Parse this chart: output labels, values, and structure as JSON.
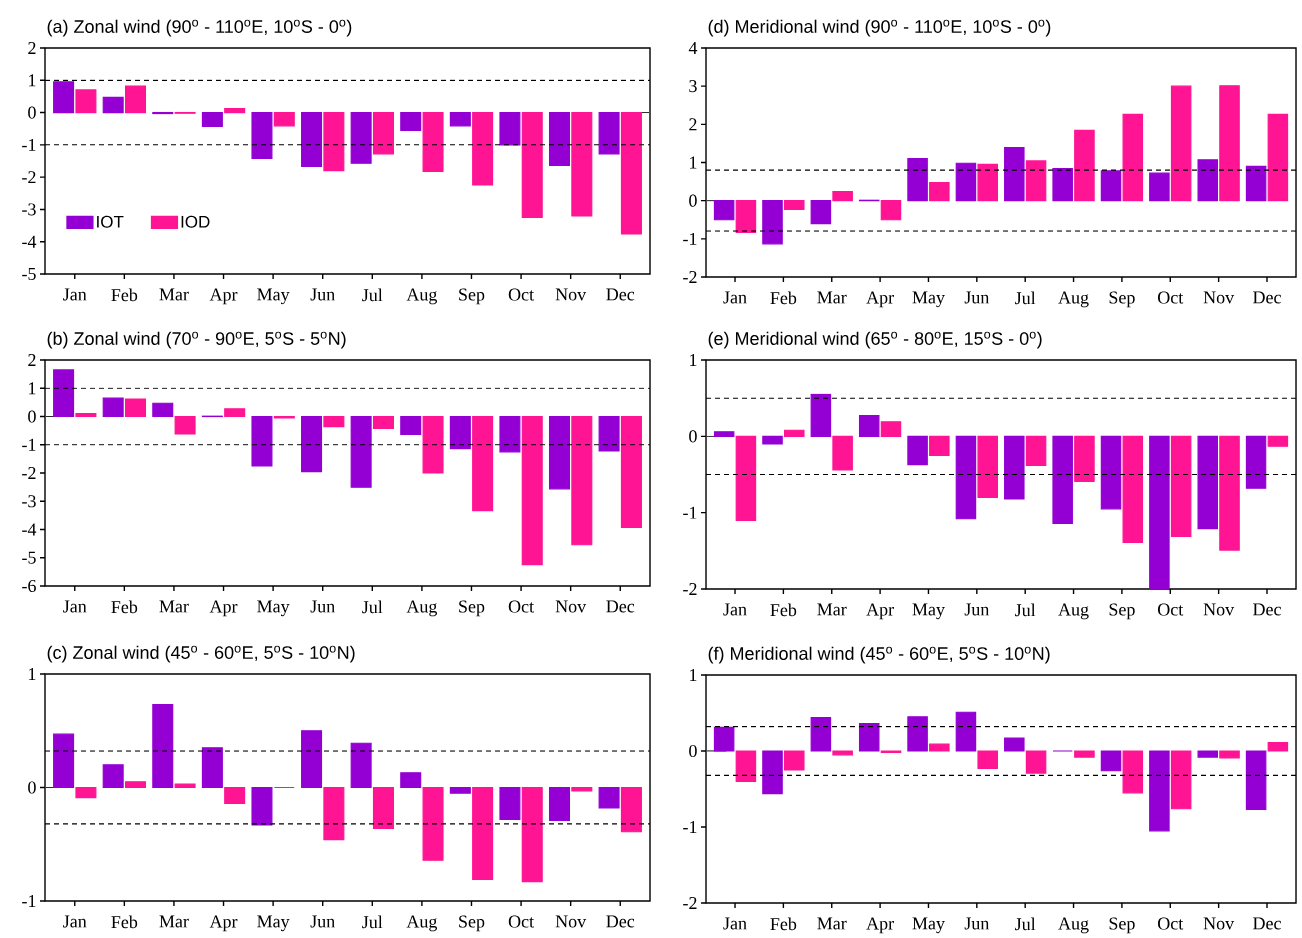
{
  "chart_data": [
    {
      "type": "bar",
      "title": "(a) Zonal wind (90$^{o}$ - 110$^{o}$E, 10$^{o}$S - 0$^{o}$)",
      "categories": [
        "Jan",
        "Feb",
        "Mar",
        "Apr",
        "May",
        "Jun",
        "Jul",
        "Aug",
        "Sep",
        "Oct",
        "Nov",
        "Dec"
      ],
      "series": [
        {
          "name": "IOT",
          "color": "#9400d3",
          "values": [
            0.95,
            0.47,
            -0.03,
            -0.43,
            -1.42,
            -1.67,
            -1.57,
            -0.55,
            -0.41,
            -1.0,
            -1.64,
            -1.28
          ]
        },
        {
          "name": "IOD",
          "color": "#ff1493",
          "values": [
            0.7,
            0.82,
            -0.02,
            0.12,
            -0.41,
            -1.8,
            -1.28,
            -1.82,
            -2.24,
            -3.25,
            -3.2,
            -3.76
          ]
        }
      ],
      "ylim": [
        -5,
        2
      ],
      "yticks": [
        -5,
        -4,
        -3,
        -2,
        -1,
        0,
        1,
        2
      ],
      "legend": "bottom left",
      "ref_lines": [
        {
          "axis": "y",
          "value": 1,
          "line_style": "dashed"
        },
        {
          "axis": "y",
          "value": -1,
          "line_style": "dashed"
        }
      ]
    },
    {
      "type": "bar",
      "title": "(b) Zonal wind (70$^{o}$ - 90$^{o}$E, 5$^{o}$S - 5$^{o}$N)",
      "categories": [
        "Jan",
        "Feb",
        "Mar",
        "Apr",
        "May",
        "Jun",
        "Jul",
        "Aug",
        "Sep",
        "Oct",
        "Nov",
        "Dec"
      ],
      "series": [
        {
          "color": "#9400d3",
          "values": [
            1.65,
            0.65,
            0.47,
            0.01,
            -1.75,
            -1.95,
            -2.5,
            -0.63,
            -1.14,
            -1.25,
            -2.56,
            -1.22
          ]
        },
        {
          "color": "#ff1493",
          "values": [
            0.1,
            0.62,
            -0.62,
            0.27,
            -0.05,
            -0.36,
            -0.42,
            -2.0,
            -3.33,
            -5.24,
            -4.54,
            -3.93
          ]
        }
      ],
      "ylim": [
        -6,
        2
      ],
      "yticks": [
        -6,
        -5,
        -4,
        -3,
        -2,
        -1,
        0,
        1,
        2
      ],
      "ref_lines": [
        {
          "axis": "y",
          "value": 1,
          "line_style": "dashed"
        },
        {
          "axis": "y",
          "value": -1,
          "line_style": "dashed"
        }
      ]
    },
    {
      "type": "bar",
      "title": "(c) Zonal wind (45$^{o}$ - 60$^{o}$E, 5$^{o}$S - 10$^{o}$N)",
      "categories": [
        "Jan",
        "Feb",
        "Mar",
        "Apr",
        "May",
        "Jun",
        "Jul",
        "Aug",
        "Sep",
        "Oct",
        "Nov",
        "Dec"
      ],
      "series": [
        {
          "color": "#9400d3",
          "values": [
            0.47,
            0.2,
            0.73,
            0.35,
            -0.33,
            0.5,
            0.39,
            0.13,
            -0.05,
            -0.28,
            -0.29,
            -0.18
          ]
        },
        {
          "color": "#ff1493",
          "values": [
            -0.09,
            0.05,
            0.03,
            -0.14,
            0.0,
            -0.46,
            -0.36,
            -0.64,
            -0.81,
            -0.83,
            -0.03,
            -0.39
          ]
        }
      ],
      "ylim": [
        -1,
        1
      ],
      "yticks": [
        -1,
        0,
        1
      ],
      "ref_lines": [
        {
          "axis": "y",
          "value": 0.32,
          "line_style": "dashed"
        },
        {
          "axis": "y",
          "value": -0.32,
          "line_style": "dashed"
        }
      ]
    },
    {
      "type": "bar",
      "title": "(d) Meridional wind (90$^{o}$ - 110$^{o}$E, 10$^{o}$S - 0$^{o}$)",
      "categories": [
        "Jan",
        "Feb",
        "Mar",
        "Apr",
        "May",
        "Jun",
        "Jul",
        "Aug",
        "Sep",
        "Oct",
        "Nov",
        "Dec"
      ],
      "series": [
        {
          "color": "#9400d3",
          "values": [
            -0.5,
            -1.13,
            -0.6,
            0.01,
            1.1,
            0.98,
            1.39,
            0.84,
            0.78,
            0.72,
            1.07,
            0.9
          ]
        },
        {
          "color": "#ff1493",
          "values": [
            -0.83,
            -0.23,
            0.24,
            -0.5,
            0.47,
            0.95,
            1.04,
            1.84,
            2.26,
            3.0,
            3.01,
            2.26
          ]
        }
      ],
      "ylim": [
        -2,
        4
      ],
      "yticks": [
        -2,
        -1,
        0,
        1,
        2,
        3,
        4
      ],
      "ref_lines": [
        {
          "axis": "y",
          "value": 0.8,
          "line_style": "dashed"
        },
        {
          "axis": "y",
          "value": -0.8,
          "line_style": "dashed"
        }
      ]
    },
    {
      "type": "bar",
      "title": "(e) Meridional wind (65$^{o}$ - 80$^{o}$E, 15$^{o}$S - 0$^{o}$)",
      "categories": [
        "Jan",
        "Feb",
        "Mar",
        "Apr",
        "May",
        "Jun",
        "Jul",
        "Aug",
        "Sep",
        "Oct",
        "Nov",
        "Dec"
      ],
      "series": [
        {
          "color": "#9400d3",
          "values": [
            0.06,
            -0.1,
            0.55,
            0.27,
            -0.37,
            -1.08,
            -0.82,
            -1.14,
            -0.95,
            -2.0,
            -1.21,
            -0.68
          ]
        },
        {
          "color": "#ff1493",
          "values": [
            -1.1,
            0.08,
            -0.44,
            0.19,
            -0.25,
            -0.8,
            -0.38,
            -0.59,
            -1.39,
            -1.31,
            -1.49,
            -0.13
          ]
        }
      ],
      "ylim": [
        -2,
        1
      ],
      "yticks": [
        -2,
        -1,
        0,
        1
      ],
      "ref_lines": [
        {
          "axis": "y",
          "value": 0.5,
          "line_style": "dashed"
        },
        {
          "axis": "y",
          "value": -0.5,
          "line_style": "dashed"
        }
      ]
    },
    {
      "type": "bar",
      "title": "(f) Meridional wind (45$^{o}$ - 60$^{o}$E, 5$^{o}$S - 10$^{o}$N)",
      "categories": [
        "Jan",
        "Feb",
        "Mar",
        "Apr",
        "May",
        "Jun",
        "Jul",
        "Aug",
        "Sep",
        "Oct",
        "Nov",
        "Dec"
      ],
      "series": [
        {
          "color": "#9400d3",
          "values": [
            0.31,
            -0.56,
            0.44,
            0.36,
            0.45,
            0.51,
            0.17,
            0.0,
            -0.26,
            -1.05,
            -0.08,
            -0.77
          ]
        },
        {
          "color": "#ff1493",
          "values": [
            -0.4,
            -0.25,
            -0.05,
            -0.02,
            0.09,
            -0.23,
            -0.29,
            -0.08,
            -0.55,
            -0.76,
            -0.09,
            0.11
          ]
        }
      ],
      "ylim": [
        -2,
        1
      ],
      "yticks": [
        -2,
        -1,
        0,
        1
      ],
      "ref_lines": [
        {
          "axis": "y",
          "value": 0.32,
          "line_style": "dashed"
        },
        {
          "axis": "y",
          "value": -0.32,
          "line_style": "dashed"
        }
      ]
    }
  ]
}
